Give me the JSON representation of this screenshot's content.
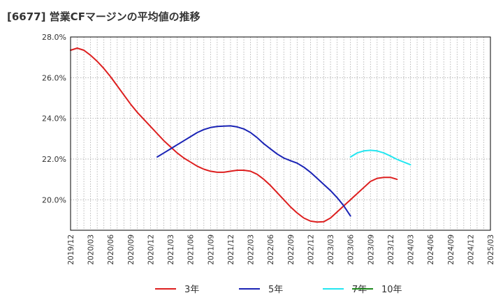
{
  "chart_data": {
    "type": "line",
    "title": "[6677]  営業CFマージンの平均値の推移",
    "xlabel": "",
    "ylabel": "",
    "ylim": [
      18.5,
      28.0
    ],
    "y_ticks": [
      "20.0%",
      "22.0%",
      "24.0%",
      "26.0%",
      "28.0%"
    ],
    "y_tick_values": [
      20,
      22,
      24,
      26,
      28
    ],
    "x_ticks": [
      "2019/12",
      "2020/03",
      "2020/06",
      "2020/09",
      "2020/12",
      "2021/03",
      "2021/06",
      "2021/09",
      "2021/12",
      "2022/03",
      "2022/06",
      "2022/09",
      "2022/12",
      "2023/03",
      "2023/06",
      "2023/09",
      "2023/12",
      "2024/03",
      "2024/06",
      "2024/09",
      "2024/12",
      "2025/03"
    ],
    "x_range": [
      "2019/12",
      "2025/03"
    ],
    "grid": true,
    "legend_position": "bottom",
    "series": [
      {
        "name": "3年",
        "color": "#dd1f1f",
        "points": [
          [
            "2019/12",
            27.35
          ],
          [
            "2020/01",
            27.45
          ],
          [
            "2020/02",
            27.35
          ],
          [
            "2020/03",
            27.1
          ],
          [
            "2020/04",
            26.8
          ],
          [
            "2020/05",
            26.45
          ],
          [
            "2020/06",
            26.05
          ],
          [
            "2020/07",
            25.6
          ],
          [
            "2020/08",
            25.15
          ],
          [
            "2020/09",
            24.7
          ],
          [
            "2020/10",
            24.3
          ],
          [
            "2020/11",
            23.95
          ],
          [
            "2020/12",
            23.6
          ],
          [
            "2021/01",
            23.25
          ],
          [
            "2021/02",
            22.9
          ],
          [
            "2021/03",
            22.6
          ],
          [
            "2021/04",
            22.3
          ],
          [
            "2021/05",
            22.05
          ],
          [
            "2021/06",
            21.85
          ],
          [
            "2021/07",
            21.65
          ],
          [
            "2021/08",
            21.5
          ],
          [
            "2021/09",
            21.4
          ],
          [
            "2021/10",
            21.35
          ],
          [
            "2021/11",
            21.35
          ],
          [
            "2021/12",
            21.4
          ],
          [
            "2022/01",
            21.45
          ],
          [
            "2022/02",
            21.45
          ],
          [
            "2022/03",
            21.4
          ],
          [
            "2022/04",
            21.25
          ],
          [
            "2022/05",
            21.0
          ],
          [
            "2022/06",
            20.7
          ],
          [
            "2022/07",
            20.35
          ],
          [
            "2022/08",
            20.0
          ],
          [
            "2022/09",
            19.65
          ],
          [
            "2022/10",
            19.35
          ],
          [
            "2022/11",
            19.1
          ],
          [
            "2022/12",
            18.95
          ],
          [
            "2023/01",
            18.9
          ],
          [
            "2023/02",
            18.92
          ],
          [
            "2023/03",
            19.1
          ],
          [
            "2023/04",
            19.4
          ],
          [
            "2023/05",
            19.7
          ],
          [
            "2023/06",
            20.0
          ],
          [
            "2023/07",
            20.3
          ],
          [
            "2023/08",
            20.6
          ],
          [
            "2023/09",
            20.9
          ],
          [
            "2023/10",
            21.05
          ],
          [
            "2023/11",
            21.1
          ],
          [
            "2023/12",
            21.1
          ],
          [
            "2024/01",
            21.0
          ]
        ]
      },
      {
        "name": "5年",
        "color": "#1a23b5",
        "points": [
          [
            "2021/01",
            22.1
          ],
          [
            "2021/02",
            22.3
          ],
          [
            "2021/03",
            22.5
          ],
          [
            "2021/04",
            22.7
          ],
          [
            "2021/05",
            22.9
          ],
          [
            "2021/06",
            23.1
          ],
          [
            "2021/07",
            23.3
          ],
          [
            "2021/08",
            23.45
          ],
          [
            "2021/09",
            23.55
          ],
          [
            "2021/10",
            23.6
          ],
          [
            "2021/11",
            23.62
          ],
          [
            "2021/12",
            23.63
          ],
          [
            "2022/01",
            23.58
          ],
          [
            "2022/02",
            23.48
          ],
          [
            "2022/03",
            23.3
          ],
          [
            "2022/04",
            23.05
          ],
          [
            "2022/05",
            22.75
          ],
          [
            "2022/06",
            22.5
          ],
          [
            "2022/07",
            22.25
          ],
          [
            "2022/08",
            22.05
          ],
          [
            "2022/09",
            21.92
          ],
          [
            "2022/10",
            21.8
          ],
          [
            "2022/11",
            21.6
          ],
          [
            "2022/12",
            21.35
          ],
          [
            "2023/01",
            21.05
          ],
          [
            "2023/02",
            20.75
          ],
          [
            "2023/03",
            20.45
          ],
          [
            "2023/04",
            20.1
          ],
          [
            "2023/05",
            19.7
          ],
          [
            "2023/06",
            19.2
          ]
        ]
      },
      {
        "name": "7年",
        "color": "#22e6f0",
        "points": [
          [
            "2023/06",
            22.1
          ],
          [
            "2023/07",
            22.3
          ],
          [
            "2023/08",
            22.4
          ],
          [
            "2023/09",
            22.43
          ],
          [
            "2023/10",
            22.4
          ],
          [
            "2023/11",
            22.3
          ],
          [
            "2023/12",
            22.15
          ],
          [
            "2024/01",
            21.98
          ],
          [
            "2024/02",
            21.85
          ],
          [
            "2024/03",
            21.72
          ]
        ]
      },
      {
        "name": "10年",
        "color": "#1f8a1f",
        "points": []
      }
    ]
  }
}
